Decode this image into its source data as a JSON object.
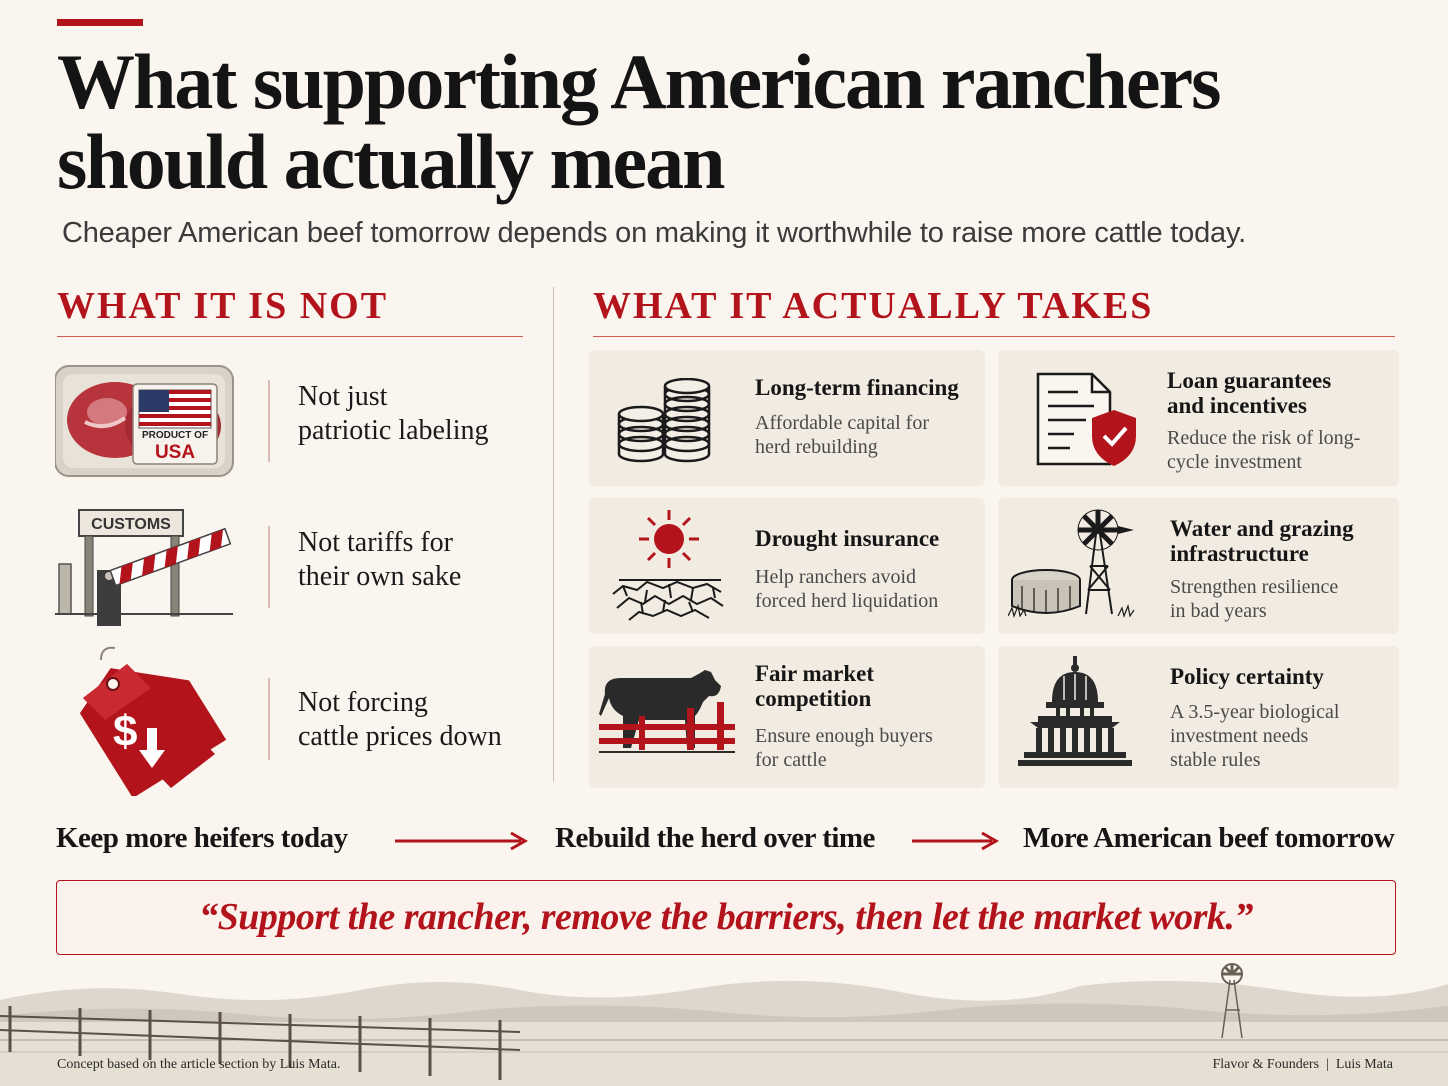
{
  "header": {
    "title": "What supporting American ranchers should actually mean",
    "subtitle": "Cheaper American beef tomorrow depends on making it worthwhile to raise more cattle today."
  },
  "not_section": {
    "heading": "WHAT IT IS NOT",
    "items": [
      {
        "icon": "beef-package-icon",
        "label_line1": "Not just",
        "label_line2": "patriotic labeling",
        "badge_line1": "PRODUCT OF",
        "badge_line2": "USA"
      },
      {
        "icon": "customs-barrier-icon",
        "label_line1": "Not tariffs for",
        "label_line2": "their own sake",
        "sign": "CUSTOMS"
      },
      {
        "icon": "price-tag-down-icon",
        "label_line1": "Not forcing",
        "label_line2": "cattle prices down",
        "tag_symbol": "$"
      }
    ]
  },
  "takes_section": {
    "heading": "WHAT IT ACTUALLY TAKES",
    "cards": [
      {
        "icon": "coin-stacks-icon",
        "title": "Long-term financing",
        "desc_line1": "Affordable capital for",
        "desc_line2": "herd rebuilding"
      },
      {
        "icon": "document-shield-icon",
        "title_line1": "Loan guarantees",
        "title_line2": "and incentives",
        "desc_line1": "Reduce the risk of long-",
        "desc_line2": "cycle investment"
      },
      {
        "icon": "sun-drought-icon",
        "title": "Drought insurance",
        "desc_line1": "Help ranchers avoid",
        "desc_line2": "forced herd liquidation"
      },
      {
        "icon": "windmill-tank-icon",
        "title_line1": "Water and grazing",
        "title_line2": "infrastructure",
        "desc_line1": "Strengthen resilience",
        "desc_line2": "in bad years"
      },
      {
        "icon": "cow-fence-icon",
        "title_line1": "Fair market",
        "title_line2": "competition",
        "desc_line1": "Ensure enough buyers",
        "desc_line2": "for cattle"
      },
      {
        "icon": "capitol-icon",
        "title": "Policy certainty",
        "desc_line1": "A 3.5-year biological",
        "desc_line2": "investment needs",
        "desc_line3": "stable rules"
      }
    ]
  },
  "flow": {
    "steps": [
      "Keep more heifers today",
      "Rebuild the herd over time",
      "More American beef tomorrow"
    ]
  },
  "quote": {
    "text": "“Support the rancher, remove the barriers, then let the market work.”"
  },
  "footer": {
    "left": "Concept based on the article section by Luis Mata.",
    "right": "Flavor & Founders  |  Luis Mata"
  },
  "colors": {
    "accent": "#b3141c",
    "background": "#faf6ef",
    "card": "#f1ebe1",
    "text": "#1a1a1a"
  }
}
